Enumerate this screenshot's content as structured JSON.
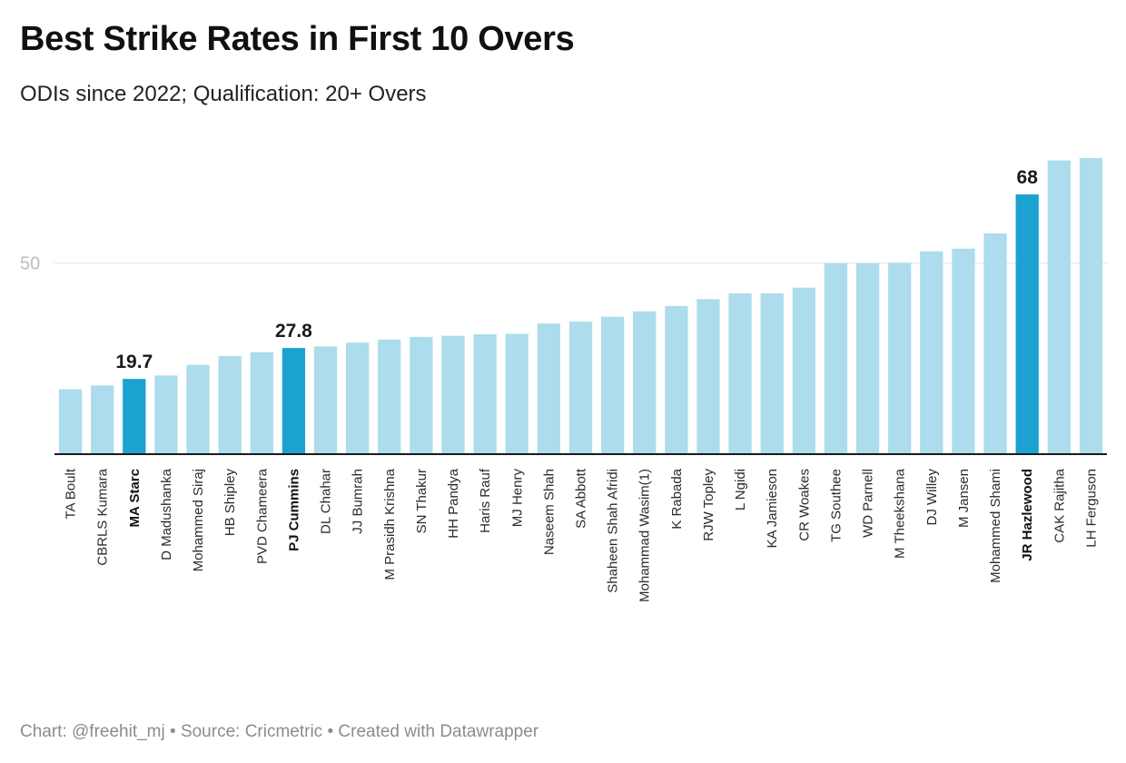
{
  "title": "Best Strike Rates in First 10 Overs",
  "subtitle": "ODIs since 2022; Qualification: 20+ Overs",
  "footer": "Chart: @freehit_mj • Source: Cricmetric • Created with Datawrapper",
  "colors": {
    "bar": "#addcec",
    "highlight": "#1ba2d0"
  },
  "chart_data": {
    "type": "bar",
    "title": "Best Strike Rates in First 10 Overs",
    "subtitle": "ODIs since 2022; Qualification: 20+ Overs",
    "xlabel": "",
    "ylabel": "",
    "ylim": [
      0,
      78
    ],
    "yticks": [
      50
    ],
    "grid": true,
    "categories": [
      "TA Boult",
      "CBRLS Kumara",
      "MA Starc",
      "D Madushanka",
      "Mohammed Siraj",
      "HB Shipley",
      "PVD Chameera",
      "PJ Cummins",
      "DL Chahar",
      "JJ Bumrah",
      "M Prasidh Krishna",
      "SN Thakur",
      "HH Pandya",
      "Haris Rauf",
      "MJ Henry",
      "Naseem Shah",
      "SA Abbott",
      "Shaheen Shah Afridi",
      "Mohammad Wasim(1)",
      "K Rabada",
      "RJW Topley",
      "L Ngidi",
      "KA Jamieson",
      "CR Woakes",
      "TG Southee",
      "WD Parnell",
      "M Theekshana",
      "DJ Willey",
      "M Jansen",
      "Mohammed Shami",
      "JR Hazlewood",
      "CAK Rajitha",
      "LH Ferguson"
    ],
    "values": [
      17.0,
      18.0,
      19.7,
      20.6,
      23.4,
      25.7,
      26.7,
      27.8,
      28.2,
      29.2,
      30.0,
      30.7,
      31.0,
      31.4,
      31.5,
      34.2,
      34.7,
      36.0,
      37.4,
      38.8,
      40.6,
      42.1,
      42.1,
      43.6,
      50.0,
      50.0,
      50.1,
      53.1,
      53.8,
      57.8,
      68.0,
      76.9,
      77.5
    ],
    "highlighted": [
      "MA Starc",
      "PJ Cummins",
      "JR Hazlewood"
    ],
    "value_labels": [
      {
        "category": "MA Starc",
        "text": "19.7"
      },
      {
        "category": "PJ Cummins",
        "text": "27.8"
      },
      {
        "category": "JR Hazlewood",
        "text": "68"
      }
    ]
  }
}
